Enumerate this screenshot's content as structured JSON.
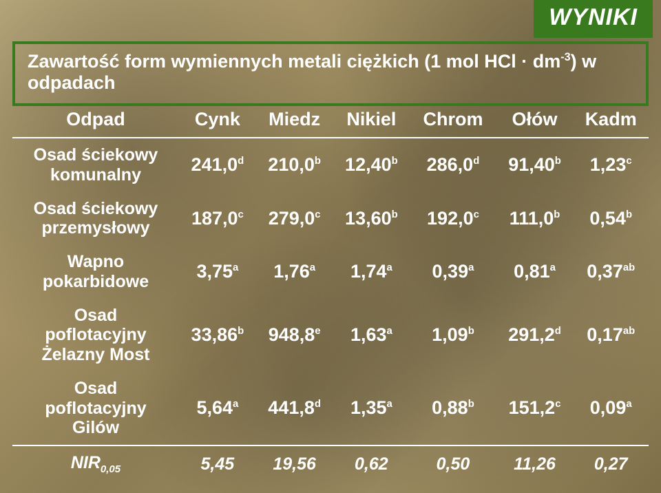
{
  "badge": {
    "text": "WYNIKI",
    "bg": "#3a7a1f"
  },
  "title": {
    "prefix": "Zawartość form wymiennych metali ciężkich (1 mol HCl · dm",
    "sup": "-3",
    "suffix": ") w odpadach",
    "border": "#3a7a1f"
  },
  "headers": [
    "Odpad",
    "Cynk",
    "Miedz",
    "Nikiel",
    "Chrom",
    "Ołów",
    "Kadm"
  ],
  "rows": [
    {
      "label_lines": [
        "Osad ściekowy",
        "komunalny"
      ],
      "cells": [
        {
          "v": "241,0",
          "s": "d"
        },
        {
          "v": "210,0",
          "s": "b"
        },
        {
          "v": "12,40",
          "s": "b"
        },
        {
          "v": "286,0",
          "s": "d"
        },
        {
          "v": "91,40",
          "s": "b"
        },
        {
          "v": "1,23",
          "s": "c"
        }
      ]
    },
    {
      "label_lines": [
        "Osad ściekowy",
        "przemysłowy"
      ],
      "cells": [
        {
          "v": "187,0",
          "s": "c"
        },
        {
          "v": "279,0",
          "s": "c"
        },
        {
          "v": "13,60",
          "s": "b"
        },
        {
          "v": "192,0",
          "s": "c"
        },
        {
          "v": "111,0",
          "s": "b"
        },
        {
          "v": "0,54",
          "s": "b"
        }
      ]
    },
    {
      "label_lines": [
        "Wapno",
        "pokarbidowe"
      ],
      "cells": [
        {
          "v": "3,75",
          "s": "a"
        },
        {
          "v": "1,76",
          "s": "a"
        },
        {
          "v": "1,74",
          "s": "a"
        },
        {
          "v": "0,39",
          "s": "a"
        },
        {
          "v": "0,81",
          "s": "a"
        },
        {
          "v": "0,37",
          "s": "ab"
        }
      ]
    },
    {
      "label_lines": [
        "Osad",
        "poflotacyjny",
        "Żelazny Most"
      ],
      "cells": [
        {
          "v": "33,86",
          "s": "b"
        },
        {
          "v": "948,8",
          "s": "e"
        },
        {
          "v": "1,63",
          "s": "a"
        },
        {
          "v": "1,09",
          "s": "b"
        },
        {
          "v": "291,2",
          "s": "d"
        },
        {
          "v": "0,17",
          "s": "ab"
        }
      ]
    },
    {
      "label_lines": [
        "Osad",
        "poflotacyjny",
        "Gilów"
      ],
      "cells": [
        {
          "v": "5,64",
          "s": "a"
        },
        {
          "v": "441,8",
          "s": "d"
        },
        {
          "v": "1,35",
          "s": "a"
        },
        {
          "v": "0,88",
          "s": "b"
        },
        {
          "v": "151,2",
          "s": "c"
        },
        {
          "v": "0,09",
          "s": "a"
        }
      ]
    }
  ],
  "nir": {
    "label_main": "NIR",
    "label_sub": "0,05",
    "values": [
      "5,45",
      "19,56",
      "0,62",
      "0,50",
      "11,26",
      "0,27"
    ]
  }
}
